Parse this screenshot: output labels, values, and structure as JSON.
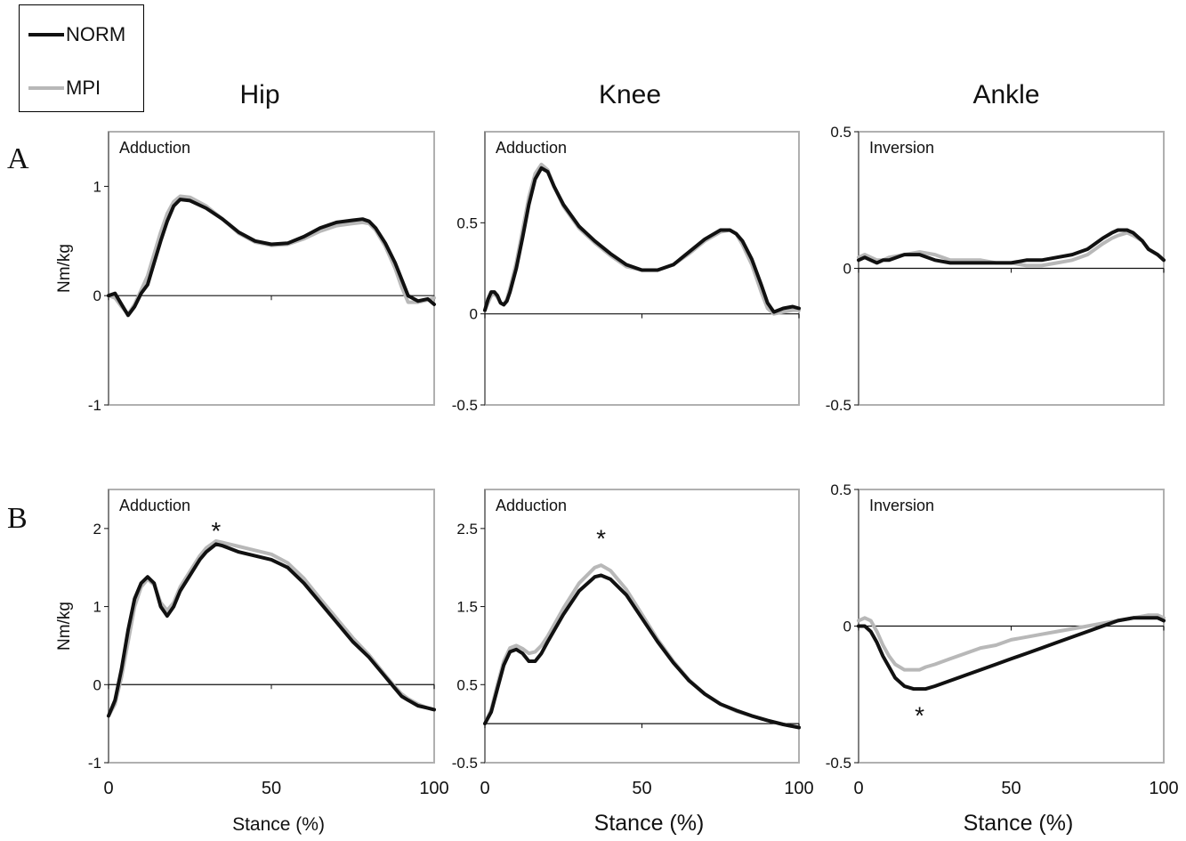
{
  "legend": {
    "items": [
      {
        "label": "NORM",
        "color": "#111111"
      },
      {
        "label": "MPI",
        "color": "#b8b8b8"
      }
    ]
  },
  "columns": [
    "Hip",
    "Knee",
    "Ankle"
  ],
  "rows": [
    "A",
    "B"
  ],
  "colors": {
    "norm": "#111111",
    "mpi": "#b8b8b8",
    "frame": "#b0b0b0",
    "axis": "#111111"
  },
  "chart_data": [
    {
      "type": "line",
      "row": "A",
      "column": "Hip",
      "annotation": "Adduction",
      "ylabel": "Nm/kg",
      "xlabel": "",
      "xlim": [
        0,
        100
      ],
      "ylim": [
        -1,
        1.5
      ],
      "yticks": [
        -1,
        0,
        1
      ],
      "ytick_labels": [
        "-1",
        "0",
        "1"
      ],
      "xticks": [
        0,
        50,
        100
      ],
      "xtick_labels": [],
      "series": [
        {
          "name": "NORM",
          "x": [
            0,
            2,
            4,
            6,
            8,
            10,
            12,
            14,
            16,
            18,
            20,
            22,
            25,
            30,
            35,
            40,
            45,
            50,
            55,
            60,
            65,
            70,
            75,
            78,
            80,
            82,
            85,
            88,
            90,
            92,
            95,
            98,
            100
          ],
          "y": [
            0.0,
            0.02,
            -0.08,
            -0.18,
            -0.1,
            0.02,
            0.1,
            0.3,
            0.5,
            0.68,
            0.82,
            0.88,
            0.87,
            0.8,
            0.7,
            0.58,
            0.5,
            0.47,
            0.48,
            0.54,
            0.62,
            0.67,
            0.69,
            0.7,
            0.68,
            0.62,
            0.48,
            0.3,
            0.15,
            0.0,
            -0.05,
            -0.03,
            -0.08
          ]
        },
        {
          "name": "MPI",
          "x": [
            0,
            2,
            4,
            6,
            8,
            10,
            12,
            14,
            16,
            18,
            20,
            22,
            25,
            30,
            35,
            40,
            45,
            50,
            55,
            60,
            65,
            70,
            75,
            78,
            80,
            82,
            85,
            88,
            90,
            92,
            95,
            98,
            100
          ],
          "y": [
            0.0,
            -0.02,
            -0.1,
            -0.17,
            -0.08,
            0.05,
            0.18,
            0.38,
            0.58,
            0.75,
            0.86,
            0.91,
            0.9,
            0.82,
            0.7,
            0.57,
            0.49,
            0.46,
            0.47,
            0.52,
            0.59,
            0.64,
            0.66,
            0.67,
            0.66,
            0.6,
            0.45,
            0.25,
            0.08,
            -0.06,
            -0.06,
            -0.04,
            -0.02
          ]
        }
      ]
    },
    {
      "type": "line",
      "row": "A",
      "column": "Knee",
      "annotation": "Adduction",
      "ylabel": "",
      "xlabel": "",
      "xlim": [
        0,
        100
      ],
      "ylim": [
        -0.5,
        1.0
      ],
      "yticks": [
        -0.5,
        0,
        0.5
      ],
      "ytick_labels": [
        "-0.5",
        "0",
        "0.5"
      ],
      "xticks": [
        0,
        50,
        100
      ],
      "xtick_labels": [],
      "series": [
        {
          "name": "NORM",
          "x": [
            0,
            1,
            2,
            3,
            4,
            5,
            6,
            7,
            8,
            10,
            12,
            14,
            16,
            18,
            20,
            22,
            25,
            30,
            35,
            40,
            45,
            50,
            55,
            60,
            65,
            70,
            75,
            78,
            80,
            82,
            85,
            88,
            90,
            92,
            95,
            98,
            100
          ],
          "y": [
            0.02,
            0.08,
            0.12,
            0.12,
            0.1,
            0.06,
            0.05,
            0.07,
            0.12,
            0.25,
            0.42,
            0.6,
            0.74,
            0.8,
            0.78,
            0.7,
            0.6,
            0.48,
            0.4,
            0.33,
            0.27,
            0.24,
            0.24,
            0.27,
            0.34,
            0.41,
            0.46,
            0.46,
            0.44,
            0.4,
            0.3,
            0.16,
            0.06,
            0.01,
            0.03,
            0.04,
            0.03
          ]
        },
        {
          "name": "MPI",
          "x": [
            0,
            1,
            2,
            3,
            4,
            5,
            6,
            7,
            8,
            10,
            12,
            14,
            16,
            18,
            20,
            22,
            25,
            30,
            35,
            40,
            45,
            50,
            55,
            60,
            65,
            70,
            75,
            78,
            80,
            82,
            85,
            88,
            90,
            92,
            95,
            98,
            100
          ],
          "y": [
            0.02,
            0.06,
            0.1,
            0.11,
            0.09,
            0.06,
            0.05,
            0.08,
            0.14,
            0.28,
            0.46,
            0.64,
            0.77,
            0.82,
            0.79,
            0.7,
            0.59,
            0.47,
            0.39,
            0.32,
            0.26,
            0.24,
            0.24,
            0.27,
            0.33,
            0.4,
            0.45,
            0.46,
            0.44,
            0.38,
            0.27,
            0.12,
            0.03,
            0.0,
            0.01,
            0.02,
            0.02
          ]
        }
      ]
    },
    {
      "type": "line",
      "row": "A",
      "column": "Ankle",
      "annotation": "Inversion",
      "ylabel": "",
      "xlabel": "",
      "xlim": [
        0,
        100
      ],
      "ylim": [
        -0.5,
        0.5
      ],
      "yticks": [
        -0.5,
        0,
        0.5
      ],
      "ytick_labels": [
        "-0.5",
        "0",
        "0.5"
      ],
      "xticks": [
        0,
        50,
        100
      ],
      "xtick_labels": [],
      "series": [
        {
          "name": "NORM",
          "x": [
            0,
            2,
            4,
            6,
            8,
            10,
            15,
            20,
            25,
            30,
            35,
            40,
            45,
            50,
            55,
            60,
            65,
            70,
            75,
            80,
            83,
            85,
            88,
            90,
            93,
            95,
            98,
            100
          ],
          "y": [
            0.03,
            0.04,
            0.03,
            0.02,
            0.03,
            0.03,
            0.05,
            0.05,
            0.03,
            0.02,
            0.02,
            0.02,
            0.02,
            0.02,
            0.03,
            0.03,
            0.04,
            0.05,
            0.07,
            0.11,
            0.13,
            0.14,
            0.14,
            0.13,
            0.1,
            0.07,
            0.05,
            0.03
          ]
        },
        {
          "name": "MPI",
          "x": [
            0,
            2,
            4,
            6,
            8,
            10,
            15,
            20,
            25,
            30,
            35,
            40,
            45,
            50,
            55,
            60,
            65,
            70,
            75,
            80,
            83,
            85,
            88,
            90,
            93,
            95,
            98,
            100
          ],
          "y": [
            0.04,
            0.05,
            0.04,
            0.03,
            0.03,
            0.04,
            0.05,
            0.06,
            0.05,
            0.03,
            0.03,
            0.03,
            0.02,
            0.02,
            0.01,
            0.01,
            0.02,
            0.03,
            0.05,
            0.09,
            0.11,
            0.12,
            0.13,
            0.12,
            0.1,
            0.07,
            0.05,
            0.03
          ]
        }
      ]
    },
    {
      "type": "line",
      "row": "B",
      "column": "Hip",
      "annotation": "Adduction",
      "marker": "*",
      "marker_at": [
        33,
        2.0
      ],
      "ylabel": "Nm/kg",
      "xlabel": "Stance (%)",
      "xlim": [
        0,
        100
      ],
      "ylim": [
        -1,
        2.5
      ],
      "yticks": [
        -1,
        0,
        1,
        2
      ],
      "ytick_labels": [
        "-1",
        "0",
        "1",
        "2"
      ],
      "xticks": [
        0,
        50,
        100
      ],
      "xtick_labels": [
        "0",
        "50",
        "100"
      ],
      "series": [
        {
          "name": "NORM",
          "x": [
            0,
            2,
            4,
            6,
            8,
            10,
            12,
            14,
            16,
            18,
            20,
            22,
            25,
            28,
            30,
            33,
            35,
            40,
            45,
            50,
            55,
            60,
            65,
            70,
            75,
            80,
            85,
            88,
            90,
            92,
            95,
            98,
            100
          ],
          "y": [
            -0.4,
            -0.2,
            0.2,
            0.7,
            1.1,
            1.3,
            1.38,
            1.3,
            1.0,
            0.88,
            1.0,
            1.2,
            1.4,
            1.6,
            1.7,
            1.8,
            1.78,
            1.7,
            1.65,
            1.6,
            1.5,
            1.3,
            1.05,
            0.8,
            0.55,
            0.35,
            0.1,
            -0.05,
            -0.15,
            -0.2,
            -0.27,
            -0.3,
            -0.32
          ]
        },
        {
          "name": "MPI",
          "x": [
            0,
            2,
            4,
            6,
            8,
            10,
            12,
            14,
            16,
            18,
            20,
            22,
            25,
            28,
            30,
            33,
            35,
            40,
            45,
            50,
            55,
            60,
            65,
            70,
            75,
            80,
            85,
            88,
            90,
            92,
            95,
            98,
            100
          ],
          "y": [
            -0.4,
            -0.25,
            0.1,
            0.55,
            1.0,
            1.25,
            1.35,
            1.28,
            1.05,
            0.95,
            1.05,
            1.25,
            1.45,
            1.65,
            1.75,
            1.84,
            1.82,
            1.77,
            1.72,
            1.67,
            1.56,
            1.36,
            1.1,
            0.85,
            0.6,
            0.38,
            0.12,
            -0.03,
            -0.12,
            -0.18,
            -0.25,
            -0.3,
            -0.32
          ]
        }
      ]
    },
    {
      "type": "line",
      "row": "B",
      "column": "Knee",
      "annotation": "Adduction",
      "marker": "*",
      "marker_at": [
        37,
        2.4
      ],
      "ylabel": "",
      "xlabel": "Stance (%)",
      "xlim": [
        0,
        100
      ],
      "ylim": [
        -0.5,
        3.0
      ],
      "yticks": [
        -0.5,
        0.5,
        1.5,
        2.5
      ],
      "ytick_labels": [
        "-0.5",
        "0.5",
        "1.5",
        "2.5"
      ],
      "xticks": [
        0,
        50,
        100
      ],
      "xtick_labels": [
        "0",
        "50",
        "100"
      ],
      "series": [
        {
          "name": "NORM",
          "x": [
            0,
            2,
            4,
            6,
            8,
            10,
            12,
            14,
            16,
            18,
            20,
            25,
            30,
            35,
            37,
            40,
            45,
            50,
            55,
            60,
            65,
            70,
            75,
            80,
            85,
            90,
            95,
            100
          ],
          "y": [
            0.0,
            0.15,
            0.45,
            0.75,
            0.92,
            0.95,
            0.9,
            0.8,
            0.8,
            0.9,
            1.05,
            1.4,
            1.7,
            1.88,
            1.9,
            1.85,
            1.65,
            1.35,
            1.05,
            0.78,
            0.55,
            0.38,
            0.25,
            0.17,
            0.1,
            0.04,
            -0.01,
            -0.05
          ]
        },
        {
          "name": "MPI",
          "x": [
            0,
            2,
            4,
            6,
            8,
            10,
            12,
            14,
            16,
            18,
            20,
            25,
            30,
            35,
            37,
            40,
            45,
            50,
            55,
            60,
            65,
            70,
            75,
            80,
            85,
            90,
            95,
            100
          ],
          "y": [
            0.0,
            0.18,
            0.5,
            0.8,
            0.97,
            1.0,
            0.96,
            0.9,
            0.92,
            1.0,
            1.12,
            1.48,
            1.8,
            2.0,
            2.03,
            1.96,
            1.72,
            1.4,
            1.08,
            0.8,
            0.56,
            0.38,
            0.25,
            0.16,
            0.1,
            0.04,
            -0.01,
            -0.05
          ]
        }
      ]
    },
    {
      "type": "line",
      "row": "B",
      "column": "Ankle",
      "annotation": "Inversion",
      "marker": "*",
      "marker_at": [
        20,
        -0.32
      ],
      "ylabel": "",
      "xlabel": "Stance (%)",
      "xlim": [
        0,
        100
      ],
      "ylim": [
        -0.5,
        0.5
      ],
      "yticks": [
        -0.5,
        0,
        0.5
      ],
      "ytick_labels": [
        "-0.5",
        "0",
        "0.5"
      ],
      "xticks": [
        0,
        50,
        100
      ],
      "xtick_labels": [
        "0",
        "50",
        "100"
      ],
      "series": [
        {
          "name": "NORM",
          "x": [
            0,
            2,
            4,
            6,
            8,
            10,
            12,
            15,
            18,
            20,
            22,
            25,
            30,
            35,
            40,
            45,
            50,
            55,
            60,
            65,
            70,
            75,
            80,
            85,
            90,
            95,
            98,
            100
          ],
          "y": [
            0.0,
            0.0,
            -0.02,
            -0.06,
            -0.11,
            -0.15,
            -0.19,
            -0.22,
            -0.23,
            -0.23,
            -0.23,
            -0.22,
            -0.2,
            -0.18,
            -0.16,
            -0.14,
            -0.12,
            -0.1,
            -0.08,
            -0.06,
            -0.04,
            -0.02,
            0.0,
            0.02,
            0.03,
            0.03,
            0.03,
            0.02
          ]
        },
        {
          "name": "MPI",
          "x": [
            0,
            2,
            4,
            6,
            8,
            10,
            12,
            15,
            18,
            20,
            22,
            25,
            30,
            35,
            40,
            45,
            50,
            55,
            60,
            65,
            70,
            75,
            80,
            85,
            90,
            95,
            98,
            100
          ],
          "y": [
            0.02,
            0.03,
            0.02,
            -0.02,
            -0.07,
            -0.11,
            -0.14,
            -0.16,
            -0.16,
            -0.16,
            -0.15,
            -0.14,
            -0.12,
            -0.1,
            -0.08,
            -0.07,
            -0.05,
            -0.04,
            -0.03,
            -0.02,
            -0.01,
            0.0,
            0.01,
            0.02,
            0.03,
            0.04,
            0.04,
            0.03
          ]
        }
      ]
    }
  ]
}
